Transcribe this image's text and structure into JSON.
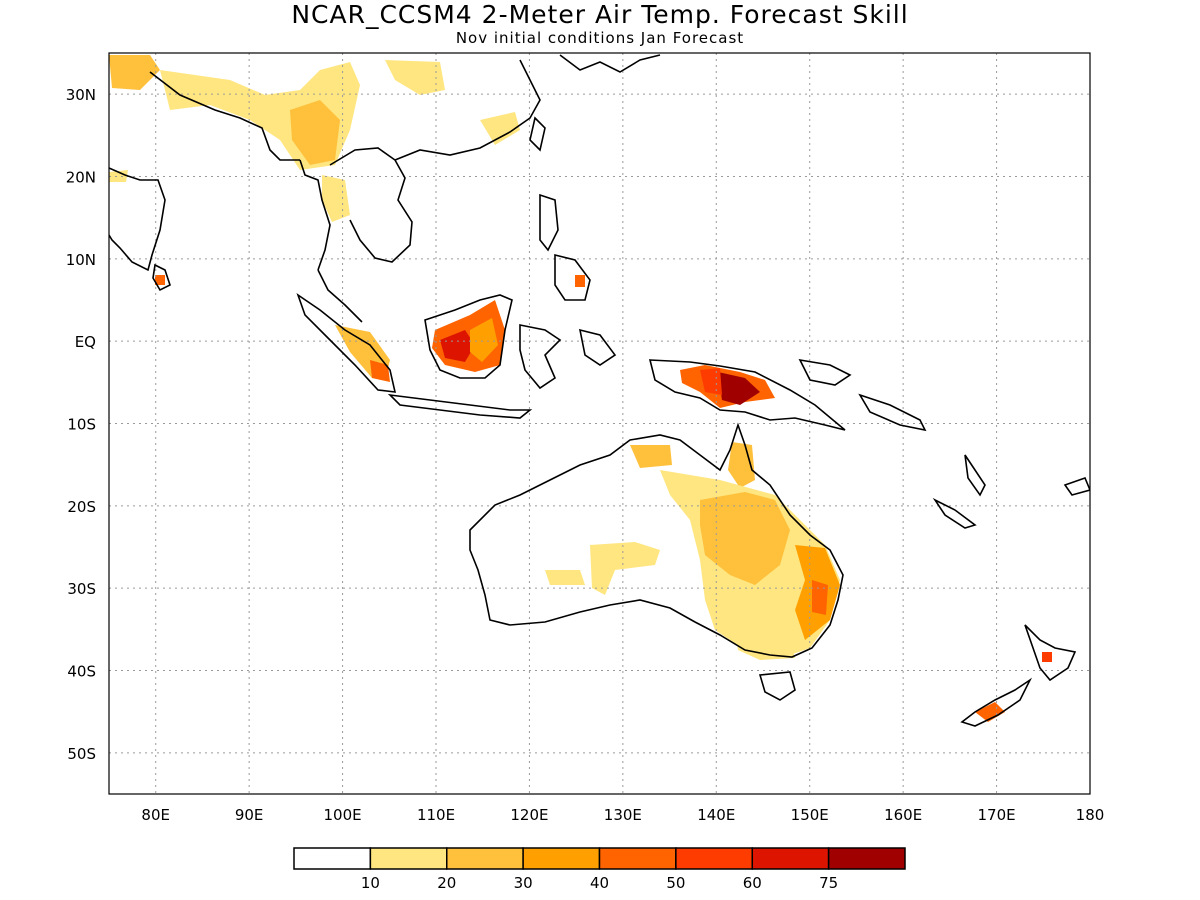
{
  "title": "NCAR_CCSM4 2-Meter Air Temp. Forecast Skill",
  "subtitle": "Nov initial conditions  Jan Forecast",
  "map": {
    "lon_range": [
      75,
      180
    ],
    "lat_range": [
      -55,
      35
    ],
    "gridlines": "dotted",
    "lat_labels": [
      "30N",
      "20N",
      "10N",
      "EQ",
      "10S",
      "20S",
      "30S",
      "40S",
      "50S"
    ],
    "lat_values": [
      30,
      20,
      10,
      0,
      -10,
      -20,
      -30,
      -40,
      -50
    ],
    "lon_labels": [
      "80E",
      "90E",
      "100E",
      "110E",
      "120E",
      "130E",
      "140E",
      "150E",
      "160E",
      "170E",
      "180"
    ],
    "lon_values": [
      80,
      90,
      100,
      110,
      120,
      130,
      140,
      150,
      160,
      170,
      180
    ]
  },
  "colorbar": {
    "labels": [
      "10",
      "20",
      "30",
      "40",
      "50",
      "60",
      "75"
    ],
    "colors": [
      "#ffffff",
      "#ffe680",
      "#ffc03c",
      "#ffa000",
      "#ff6400",
      "#ff3c00",
      "#dc1400",
      "#a00000"
    ]
  }
}
